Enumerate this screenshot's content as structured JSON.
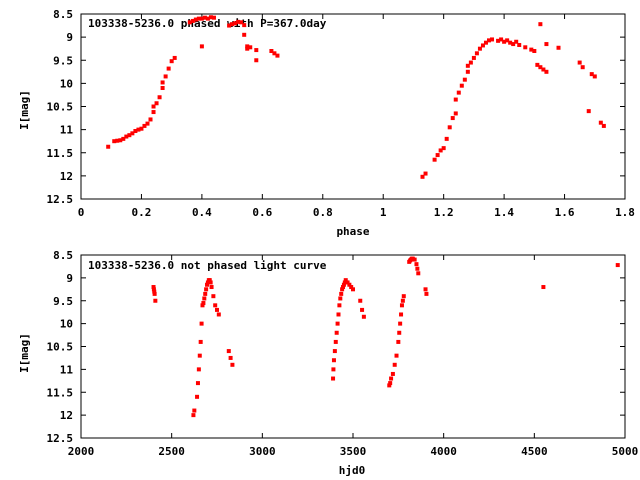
{
  "chart_data": [
    {
      "type": "scatter",
      "title": "103338-5236.0 phased with P=367.0day",
      "xlabel": "phase",
      "ylabel": "I[mag]",
      "xlim": [
        0,
        1.8
      ],
      "ylim": [
        12.5,
        8.5
      ],
      "y_inverted": true,
      "grid": false,
      "x_ticks": [
        "0",
        "0.2",
        "0.4",
        "0.6",
        "0.8",
        "1",
        "1.2",
        "1.4",
        "1.6",
        "1.8"
      ],
      "y_ticks": [
        "8.5",
        "9",
        "9.5",
        "10",
        "10.5",
        "11",
        "11.5",
        "12",
        "12.5"
      ],
      "marker_color": "#ff0000",
      "series": [
        {
          "points": [
            [
              0.09,
              11.37
            ],
            [
              0.11,
              11.25
            ],
            [
              0.12,
              11.24
            ],
            [
              0.13,
              11.23
            ],
            [
              0.14,
              11.2
            ],
            [
              0.15,
              11.15
            ],
            [
              0.16,
              11.12
            ],
            [
              0.17,
              11.08
            ],
            [
              0.18,
              11.03
            ],
            [
              0.19,
              11.0
            ],
            [
              0.2,
              10.98
            ],
            [
              0.21,
              10.92
            ],
            [
              0.22,
              10.87
            ],
            [
              0.23,
              10.78
            ],
            [
              0.24,
              10.62
            ],
            [
              0.24,
              10.5
            ],
            [
              0.25,
              10.43
            ],
            [
              0.26,
              10.3
            ],
            [
              0.27,
              10.1
            ],
            [
              0.27,
              9.98
            ],
            [
              0.28,
              9.85
            ],
            [
              0.29,
              9.68
            ],
            [
              0.3,
              9.52
            ],
            [
              0.31,
              9.45
            ],
            [
              0.36,
              8.68
            ],
            [
              0.37,
              8.65
            ],
            [
              0.38,
              8.62
            ],
            [
              0.39,
              8.6
            ],
            [
              0.4,
              9.2
            ],
            [
              0.4,
              8.6
            ],
            [
              0.41,
              8.58
            ],
            [
              0.42,
              8.6
            ],
            [
              0.43,
              8.57
            ],
            [
              0.44,
              8.58
            ],
            [
              0.49,
              8.75
            ],
            [
              0.5,
              8.72
            ],
            [
              0.51,
              8.7
            ],
            [
              0.52,
              8.67
            ],
            [
              0.53,
              8.68
            ],
            [
              0.54,
              8.74
            ],
            [
              0.54,
              8.95
            ],
            [
              0.55,
              9.2
            ],
            [
              0.55,
              9.25
            ],
            [
              0.56,
              9.22
            ],
            [
              0.58,
              9.28
            ],
            [
              0.58,
              9.5
            ],
            [
              0.63,
              9.3
            ],
            [
              0.64,
              9.35
            ],
            [
              0.65,
              9.4
            ],
            [
              1.13,
              12.02
            ],
            [
              1.14,
              11.95
            ],
            [
              1.17,
              11.65
            ],
            [
              1.18,
              11.55
            ],
            [
              1.19,
              11.45
            ],
            [
              1.2,
              11.4
            ],
            [
              1.21,
              11.2
            ],
            [
              1.22,
              10.95
            ],
            [
              1.23,
              10.75
            ],
            [
              1.24,
              10.65
            ],
            [
              1.24,
              10.35
            ],
            [
              1.25,
              10.2
            ],
            [
              1.26,
              10.05
            ],
            [
              1.27,
              9.92
            ],
            [
              1.28,
              9.75
            ],
            [
              1.28,
              9.62
            ],
            [
              1.29,
              9.55
            ],
            [
              1.3,
              9.45
            ],
            [
              1.31,
              9.35
            ],
            [
              1.32,
              9.25
            ],
            [
              1.33,
              9.18
            ],
            [
              1.34,
              9.12
            ],
            [
              1.35,
              9.07
            ],
            [
              1.36,
              9.05
            ],
            [
              1.38,
              9.08
            ],
            [
              1.39,
              9.05
            ],
            [
              1.4,
              9.1
            ],
            [
              1.41,
              9.07
            ],
            [
              1.42,
              9.12
            ],
            [
              1.43,
              9.15
            ],
            [
              1.44,
              9.1
            ],
            [
              1.45,
              9.17
            ],
            [
              1.47,
              9.22
            ],
            [
              1.49,
              9.27
            ],
            [
              1.5,
              9.3
            ],
            [
              1.51,
              9.6
            ],
            [
              1.52,
              9.65
            ],
            [
              1.52,
              8.72
            ],
            [
              1.53,
              9.7
            ],
            [
              1.54,
              9.75
            ],
            [
              1.54,
              9.15
            ],
            [
              1.58,
              9.23
            ],
            [
              1.65,
              9.55
            ],
            [
              1.66,
              9.65
            ],
            [
              1.68,
              10.6
            ],
            [
              1.69,
              9.8
            ],
            [
              1.7,
              9.85
            ],
            [
              1.72,
              10.85
            ],
            [
              1.73,
              10.92
            ]
          ]
        }
      ]
    },
    {
      "type": "scatter",
      "title": "103338-5236.0 not phased light curve",
      "xlabel": "hjd0",
      "ylabel": "I[mag]",
      "xlim": [
        2000,
        5000
      ],
      "ylim": [
        12.5,
        8.5
      ],
      "y_inverted": true,
      "grid": false,
      "x_ticks": [
        "2000",
        "2500",
        "3000",
        "3500",
        "4000",
        "4500",
        "5000"
      ],
      "y_ticks": [
        "8.5",
        "9",
        "9.5",
        "10",
        "10.5",
        "11",
        "11.5",
        "12",
        "12.5"
      ],
      "marker_color": "#ff0000",
      "series": [
        {
          "points": [
            [
              2400,
              9.2
            ],
            [
              2402,
              9.25
            ],
            [
              2404,
              9.3
            ],
            [
              2406,
              9.35
            ],
            [
              2410,
              9.5
            ],
            [
              2620,
              12.0
            ],
            [
              2625,
              11.9
            ],
            [
              2640,
              11.6
            ],
            [
              2645,
              11.3
            ],
            [
              2650,
              11.0
            ],
            [
              2655,
              10.7
            ],
            [
              2660,
              10.4
            ],
            [
              2665,
              10.0
            ],
            [
              2670,
              9.6
            ],
            [
              2675,
              9.55
            ],
            [
              2680,
              9.45
            ],
            [
              2685,
              9.35
            ],
            [
              2690,
              9.25
            ],
            [
              2695,
              9.15
            ],
            [
              2700,
              9.1
            ],
            [
              2705,
              9.05
            ],
            [
              2710,
              9.05
            ],
            [
              2715,
              9.1
            ],
            [
              2720,
              9.2
            ],
            [
              2730,
              9.4
            ],
            [
              2740,
              9.6
            ],
            [
              2750,
              9.7
            ],
            [
              2760,
              9.8
            ],
            [
              2815,
              10.6
            ],
            [
              2825,
              10.75
            ],
            [
              2835,
              10.9
            ],
            [
              3390,
              11.2
            ],
            [
              3392,
              11.0
            ],
            [
              3395,
              10.8
            ],
            [
              3400,
              10.6
            ],
            [
              3405,
              10.4
            ],
            [
              3410,
              10.2
            ],
            [
              3415,
              10.0
            ],
            [
              3420,
              9.8
            ],
            [
              3425,
              9.6
            ],
            [
              3430,
              9.45
            ],
            [
              3435,
              9.35
            ],
            [
              3440,
              9.25
            ],
            [
              3445,
              9.2
            ],
            [
              3450,
              9.15
            ],
            [
              3455,
              9.1
            ],
            [
              3460,
              9.05
            ],
            [
              3465,
              9.1
            ],
            [
              3470,
              9.1
            ],
            [
              3480,
              9.15
            ],
            [
              3490,
              9.2
            ],
            [
              3500,
              9.25
            ],
            [
              3540,
              9.5
            ],
            [
              3550,
              9.7
            ],
            [
              3560,
              9.85
            ],
            [
              3700,
              11.35
            ],
            [
              3705,
              11.3
            ],
            [
              3710,
              11.2
            ],
            [
              3720,
              11.1
            ],
            [
              3730,
              10.9
            ],
            [
              3740,
              10.7
            ],
            [
              3750,
              10.4
            ],
            [
              3755,
              10.2
            ],
            [
              3760,
              10.0
            ],
            [
              3765,
              9.8
            ],
            [
              3770,
              9.6
            ],
            [
              3775,
              9.5
            ],
            [
              3780,
              9.4
            ],
            [
              3810,
              8.65
            ],
            [
              3815,
              8.62
            ],
            [
              3820,
              8.6
            ],
            [
              3825,
              8.58
            ],
            [
              3830,
              8.58
            ],
            [
              3840,
              8.6
            ],
            [
              3850,
              8.7
            ],
            [
              3855,
              8.8
            ],
            [
              3860,
              8.9
            ],
            [
              3900,
              9.25
            ],
            [
              3905,
              9.35
            ],
            [
              4550,
              9.2
            ],
            [
              4960,
              8.72
            ]
          ]
        }
      ]
    }
  ]
}
